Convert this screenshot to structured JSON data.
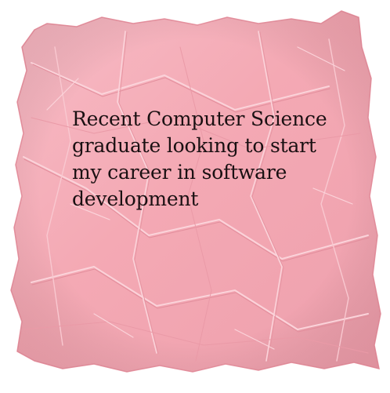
{
  "note": {
    "text": "Recent Computer Science\ngraduate looking to start\nmy career in software\ndevelopment"
  },
  "colors": {
    "paper": "#f4a9b4",
    "paper_light": "#f7bcc6",
    "paper_dark": "#e58f9d",
    "text": "#1a1012",
    "background": "#ffffff"
  }
}
